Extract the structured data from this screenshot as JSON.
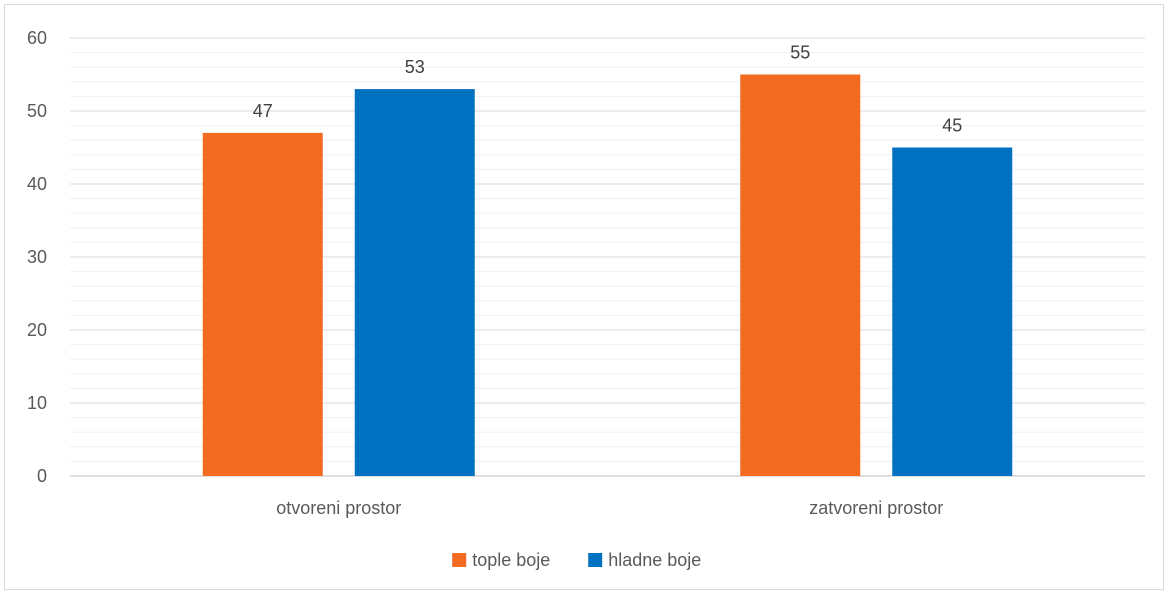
{
  "chart_data": {
    "type": "bar",
    "categories": [
      "otvoreni prostor",
      "zatvoreni prostor"
    ],
    "series": [
      {
        "name": "tople boje",
        "values": [
          47,
          55
        ],
        "color": "#F26B21"
      },
      {
        "name": "hladne boje",
        "values": [
          53,
          45
        ],
        "color": "#0070C0"
      }
    ],
    "ylim": [
      0,
      60
    ],
    "yticks": [
      0,
      10,
      20,
      30,
      40,
      50,
      60
    ],
    "minor_grid": true,
    "legend_position": "bottom",
    "data_labels": true
  }
}
